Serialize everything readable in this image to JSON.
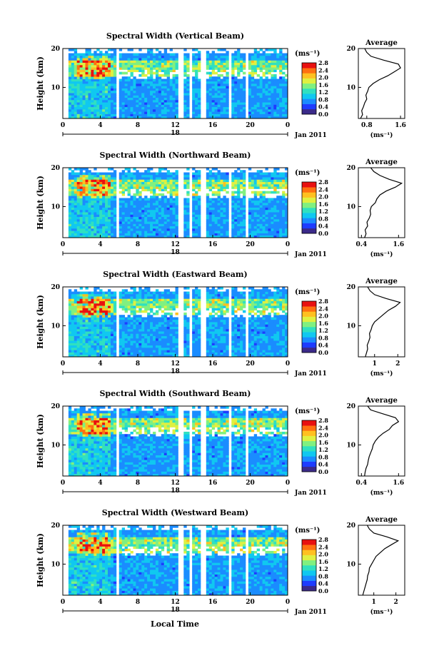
{
  "figure": {
    "xlabel": "Local Time",
    "date_label": "Jan 2011",
    "day_label": "18",
    "ylabel": "Height (km)",
    "colorbar_unit": "(ms⁻¹)",
    "colorbar_ticks": [
      "0.0",
      "0.4",
      "0.8",
      "1.2",
      "1.6",
      "2.0",
      "2.4",
      "2.8"
    ],
    "colormap": [
      "#3b2a8a",
      "#1e3cff",
      "#1a8cff",
      "#10c8f0",
      "#30e0c0",
      "#80f080",
      "#e0f040",
      "#ffc020",
      "#ff7010",
      "#e81010"
    ],
    "avg_title": "Average",
    "avg_xlabel": "(ms⁻¹)"
  },
  "chart_data": [
    {
      "type": "heatmap",
      "title": "Spectral Width (Vertical Beam)",
      "x_ticks": [
        "0",
        "4",
        "8",
        "12",
        "16",
        "20",
        "0"
      ],
      "y_ticks": [
        "10",
        "20"
      ],
      "xlim": [
        0,
        24
      ],
      "ylim": [
        2,
        20
      ],
      "colorbar_range": [
        0,
        2.8
      ],
      "avg_profile": {
        "type": "line",
        "x_ticks": [
          "0.8",
          "1.6"
        ],
        "xlim": [
          0.6,
          1.7
        ],
        "heights": [
          2,
          3,
          4,
          5,
          6,
          7,
          8,
          9,
          10,
          11,
          12,
          13,
          14,
          15,
          16,
          17,
          18,
          19,
          20
        ],
        "values": [
          0.65,
          0.7,
          0.68,
          0.72,
          0.75,
          0.8,
          0.78,
          0.82,
          0.85,
          0.95,
          1.1,
          1.3,
          1.45,
          1.6,
          1.55,
          1.2,
          0.9,
          0.8,
          0.75
        ]
      }
    },
    {
      "type": "heatmap",
      "title": "Spectral Width (Northward Beam)",
      "x_ticks": [
        "0",
        "4",
        "8",
        "12",
        "16",
        "20",
        "0"
      ],
      "y_ticks": [
        "10",
        "20"
      ],
      "xlim": [
        0,
        24
      ],
      "ylim": [
        2,
        20
      ],
      "colorbar_range": [
        0,
        2.8
      ],
      "avg_profile": {
        "type": "line",
        "x_ticks": [
          "0.4",
          "1.6"
        ],
        "xlim": [
          0.3,
          1.8
        ],
        "heights": [
          2,
          3,
          4,
          5,
          6,
          7,
          8,
          9,
          10,
          11,
          12,
          13,
          14,
          15,
          16,
          17,
          18,
          19,
          20
        ],
        "values": [
          0.5,
          0.55,
          0.52,
          0.6,
          0.58,
          0.65,
          0.7,
          0.68,
          0.72,
          0.85,
          0.9,
          1.0,
          1.2,
          1.5,
          1.7,
          1.3,
          1.0,
          0.8,
          0.7
        ]
      }
    },
    {
      "type": "heatmap",
      "title": "Spectral Width (Eastward Beam)",
      "x_ticks": [
        "0",
        "4",
        "8",
        "12",
        "16",
        "20",
        "0"
      ],
      "y_ticks": [
        "10",
        "20"
      ],
      "xlim": [
        0,
        24
      ],
      "ylim": [
        2,
        20
      ],
      "colorbar_range": [
        0,
        2.8
      ],
      "avg_profile": {
        "type": "line",
        "x_ticks": [
          "1",
          "2"
        ],
        "xlim": [
          0.3,
          2.3
        ],
        "heights": [
          2,
          3,
          4,
          5,
          6,
          7,
          8,
          9,
          10,
          11,
          12,
          13,
          14,
          15,
          16,
          17,
          18,
          19,
          20
        ],
        "values": [
          0.6,
          0.65,
          0.7,
          0.68,
          0.75,
          0.8,
          0.78,
          0.85,
          0.9,
          1.0,
          1.2,
          1.4,
          1.6,
          1.9,
          2.1,
          1.5,
          1.0,
          0.8,
          0.7
        ]
      }
    },
    {
      "type": "heatmap",
      "title": "Spectral Width (Southward Beam)",
      "x_ticks": [
        "0",
        "4",
        "8",
        "12",
        "16",
        "20",
        "0"
      ],
      "y_ticks": [
        "10",
        "20"
      ],
      "xlim": [
        0,
        24
      ],
      "ylim": [
        2,
        20
      ],
      "colorbar_range": [
        0,
        2.8
      ],
      "avg_profile": {
        "type": "line",
        "x_ticks": [
          "0.4",
          "1.6"
        ],
        "xlim": [
          0.3,
          1.8
        ],
        "heights": [
          2,
          3,
          4,
          5,
          6,
          7,
          8,
          9,
          10,
          11,
          12,
          13,
          14,
          15,
          16,
          17,
          18,
          19,
          20
        ],
        "values": [
          0.5,
          0.52,
          0.55,
          0.6,
          0.62,
          0.65,
          0.7,
          0.75,
          0.78,
          0.85,
          0.95,
          1.1,
          1.3,
          1.4,
          1.6,
          1.5,
          1.1,
          0.7,
          0.6
        ]
      }
    },
    {
      "type": "heatmap",
      "title": "Spectral Width (Westward Beam)",
      "x_ticks": [
        "0",
        "4",
        "8",
        "12",
        "16",
        "20",
        "0"
      ],
      "y_ticks": [
        "10",
        "20"
      ],
      "xlim": [
        0,
        24
      ],
      "ylim": [
        2,
        20
      ],
      "colorbar_range": [
        0,
        2.8
      ],
      "avg_profile": {
        "type": "line",
        "x_ticks": [
          "1",
          "2"
        ],
        "xlim": [
          0.3,
          2.4
        ],
        "heights": [
          2,
          3,
          4,
          5,
          6,
          7,
          8,
          9,
          10,
          11,
          12,
          13,
          14,
          15,
          16,
          17,
          18,
          19,
          20
        ],
        "values": [
          0.5,
          0.55,
          0.6,
          0.65,
          0.7,
          0.72,
          0.78,
          0.8,
          0.9,
          1.0,
          1.1,
          1.3,
          1.5,
          1.8,
          2.1,
          1.6,
          1.0,
          0.8,
          0.7
        ]
      }
    }
  ]
}
